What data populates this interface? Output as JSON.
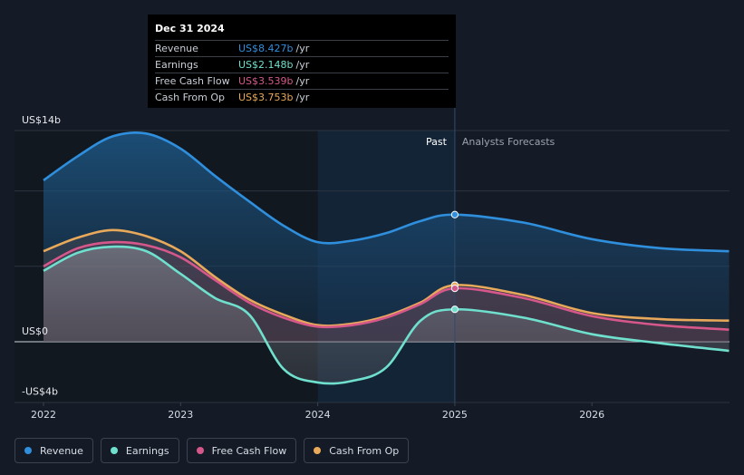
{
  "tooltip": {
    "date": "Dec 31 2024",
    "rows": [
      {
        "label": "Revenue",
        "value": "US$8.427b",
        "unit": "/yr",
        "color": "#2f8fdd"
      },
      {
        "label": "Earnings",
        "value": "US$2.148b",
        "unit": "/yr",
        "color": "#6fe0cd"
      },
      {
        "label": "Free Cash Flow",
        "value": "US$3.539b",
        "unit": "/yr",
        "color": "#d6578a"
      },
      {
        "label": "Cash From Op",
        "value": "US$3.753b",
        "unit": "/yr",
        "color": "#e9a95a"
      }
    ]
  },
  "legend": [
    {
      "label": "Revenue",
      "color": "#2f8fdd"
    },
    {
      "label": "Earnings",
      "color": "#6fe0cd"
    },
    {
      "label": "Free Cash Flow",
      "color": "#d6578a"
    },
    {
      "label": "Cash From Op",
      "color": "#e9a95a"
    }
  ],
  "chart_data": {
    "type": "line",
    "ylim": [
      -4,
      14
    ],
    "y_tick_labels": [
      {
        "value": 14,
        "label": "US$14b"
      },
      {
        "value": 0,
        "label": "US$0"
      },
      {
        "value": -4,
        "label": "-US$4b"
      }
    ],
    "xlim": [
      2022,
      2027
    ],
    "x_tick_labels": [
      {
        "value": 2022,
        "label": "2022"
      },
      {
        "value": 2023,
        "label": "2023"
      },
      {
        "value": 2024,
        "label": "2024"
      },
      {
        "value": 2025,
        "label": "2025"
      },
      {
        "value": 2026,
        "label": "2026"
      }
    ],
    "past_label": "Past",
    "forecast_label": "Analysts Forecasts",
    "divider_x": 2025.0,
    "highlight_start_x": 2024.0,
    "series": [
      {
        "name": "Revenue",
        "color": "#2f8fdd",
        "points": [
          [
            2022,
            10.7
          ],
          [
            2022.25,
            12.3
          ],
          [
            2022.5,
            13.6
          ],
          [
            2022.75,
            13.8
          ],
          [
            2023,
            12.8
          ],
          [
            2023.25,
            11.0
          ],
          [
            2023.5,
            9.3
          ],
          [
            2023.75,
            7.7
          ],
          [
            2024,
            6.6
          ],
          [
            2024.25,
            6.7
          ],
          [
            2024.5,
            7.2
          ],
          [
            2024.75,
            8.0
          ],
          [
            2025,
            8.427
          ],
          [
            2025.5,
            7.9
          ],
          [
            2026,
            6.8
          ],
          [
            2026.5,
            6.2
          ],
          [
            2027,
            6.0
          ]
        ]
      },
      {
        "name": "Cash From Op",
        "color": "#e9a95a",
        "points": [
          [
            2022,
            6.0
          ],
          [
            2022.25,
            6.9
          ],
          [
            2022.5,
            7.4
          ],
          [
            2022.75,
            7.0
          ],
          [
            2023,
            6.0
          ],
          [
            2023.25,
            4.3
          ],
          [
            2023.5,
            2.8
          ],
          [
            2023.75,
            1.8
          ],
          [
            2024,
            1.1
          ],
          [
            2024.25,
            1.2
          ],
          [
            2024.5,
            1.7
          ],
          [
            2024.75,
            2.6
          ],
          [
            2025,
            3.753
          ],
          [
            2025.5,
            3.1
          ],
          [
            2026,
            1.9
          ],
          [
            2026.5,
            1.5
          ],
          [
            2027,
            1.4
          ]
        ]
      },
      {
        "name": "Free Cash Flow",
        "color": "#d6578a",
        "points": [
          [
            2022,
            5.0
          ],
          [
            2022.25,
            6.2
          ],
          [
            2022.5,
            6.6
          ],
          [
            2022.75,
            6.4
          ],
          [
            2023,
            5.6
          ],
          [
            2023.25,
            4.1
          ],
          [
            2023.5,
            2.6
          ],
          [
            2023.75,
            1.6
          ],
          [
            2024,
            1.0
          ],
          [
            2024.25,
            1.1
          ],
          [
            2024.5,
            1.6
          ],
          [
            2024.75,
            2.5
          ],
          [
            2025,
            3.539
          ],
          [
            2025.5,
            2.9
          ],
          [
            2026,
            1.7
          ],
          [
            2026.5,
            1.1
          ],
          [
            2027,
            0.8
          ]
        ]
      },
      {
        "name": "Earnings",
        "color": "#6fe0cd",
        "points": [
          [
            2022,
            4.7
          ],
          [
            2022.25,
            5.9
          ],
          [
            2022.5,
            6.3
          ],
          [
            2022.75,
            6.0
          ],
          [
            2023,
            4.5
          ],
          [
            2023.25,
            2.9
          ],
          [
            2023.5,
            1.8
          ],
          [
            2023.75,
            -1.8
          ],
          [
            2024,
            -2.7
          ],
          [
            2024.25,
            -2.6
          ],
          [
            2024.5,
            -1.7
          ],
          [
            2024.75,
            1.4
          ],
          [
            2025,
            2.148
          ],
          [
            2025.5,
            1.6
          ],
          [
            2026,
            0.5
          ],
          [
            2026.5,
            -0.1
          ],
          [
            2027,
            -0.6
          ]
        ]
      }
    ]
  }
}
